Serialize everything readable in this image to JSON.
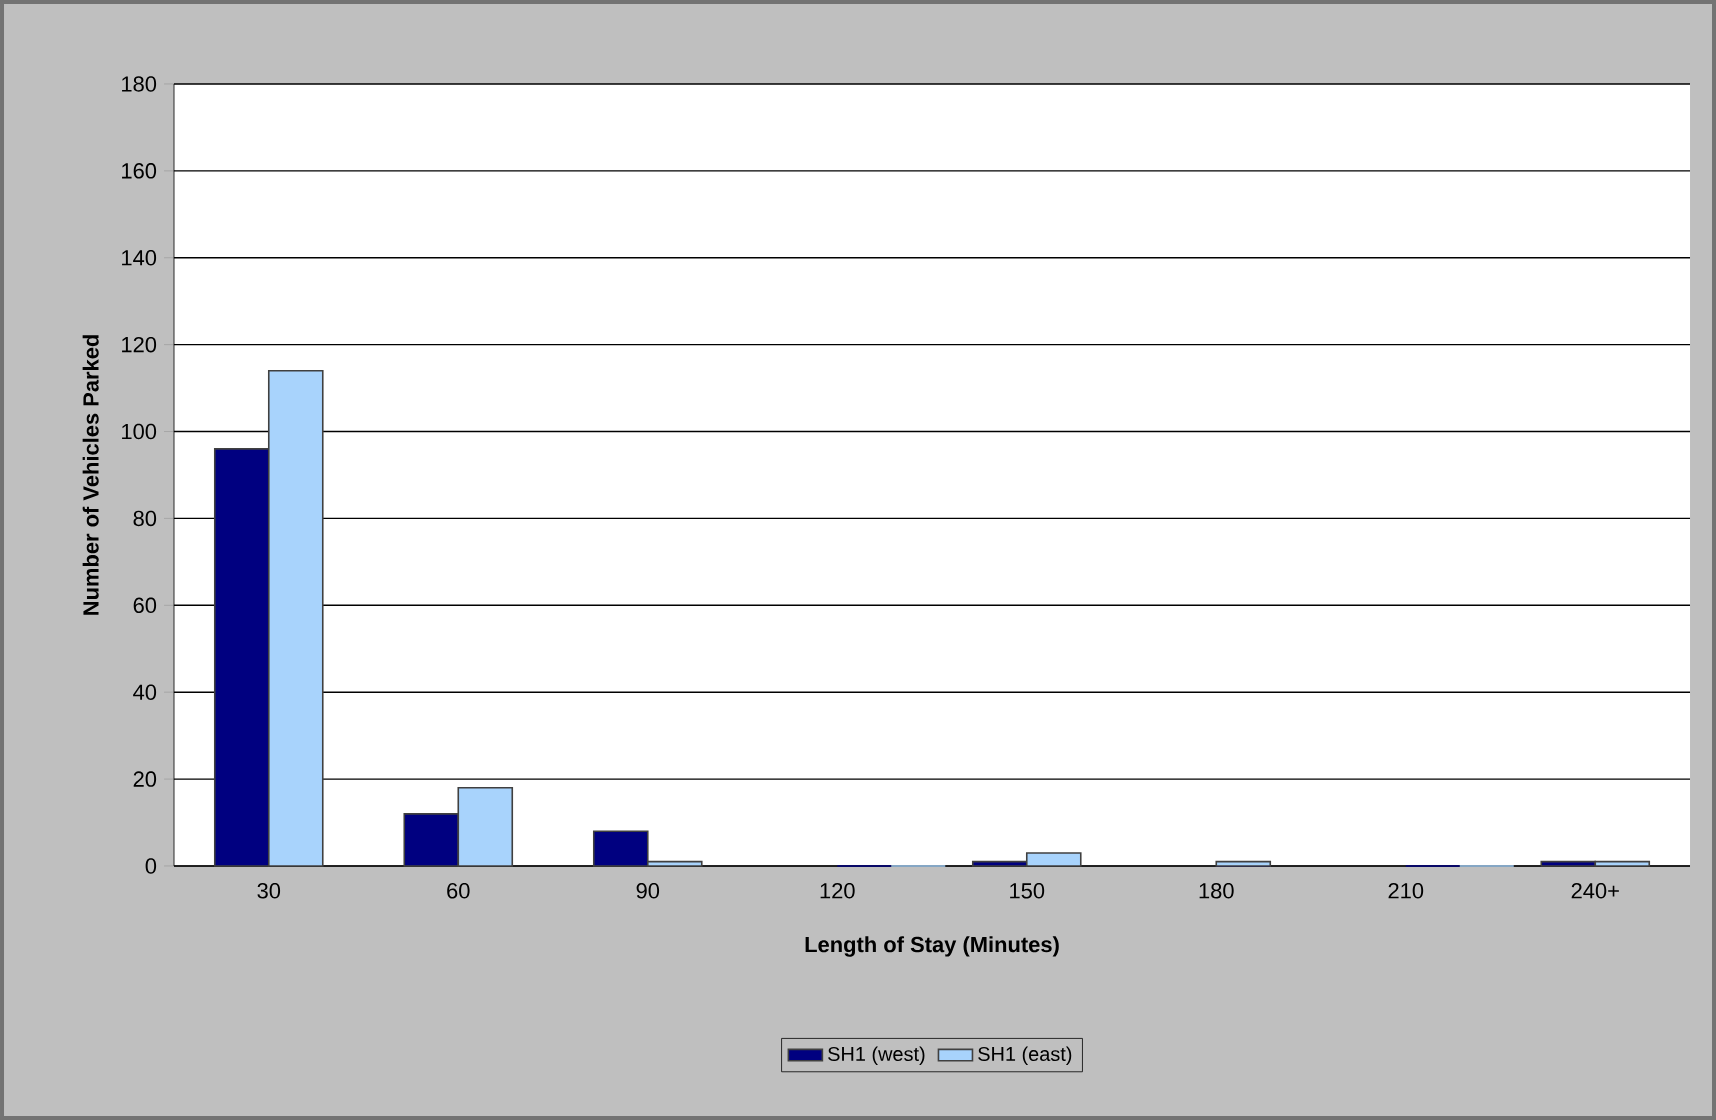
{
  "chart_data": {
    "type": "bar",
    "xlabel": "Length of Stay (Minutes)",
    "ylabel": "Number of Vehicles Parked",
    "categories": [
      "30",
      "60",
      "90",
      "120",
      "150",
      "180",
      "210",
      "240+"
    ],
    "series": [
      {
        "name": "SH1 (west)",
        "color": "#000080",
        "values": [
          96,
          12,
          8,
          0,
          1,
          0,
          0,
          1
        ]
      },
      {
        "name": "SH1 (east)",
        "color": "#a8d3fc",
        "values": [
          114,
          18,
          1,
          0,
          3,
          1,
          0,
          1
        ]
      }
    ],
    "ylim": [
      0,
      180
    ],
    "yticks": [
      0,
      20,
      40,
      60,
      80,
      100,
      120,
      140,
      160,
      180
    ],
    "grid": "y",
    "legend": "bottom"
  }
}
